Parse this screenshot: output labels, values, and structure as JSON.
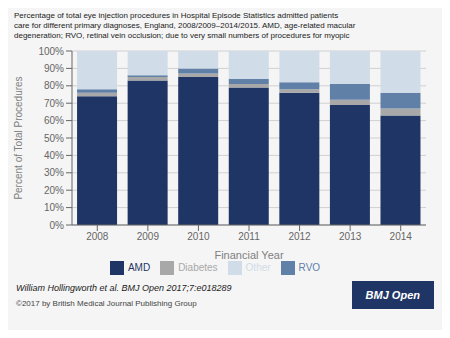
{
  "chart_data": {
    "type": "bar",
    "stacked": true,
    "title": "Percentage of total eye injection procedures in Hospital Episode Statistics admitted patients\ncare for different primary diagnoses, England, 2008/2009–2014/2015. AMD, age-related macular\ndegeneration; RVO, retinal vein occlusion; due to very small numbers of procedures for myopic",
    "xlabel": "Financial Year",
    "ylabel": "Percent of Total Procedures",
    "categories": [
      "2008",
      "2009",
      "2010",
      "2011",
      "2012",
      "2013",
      "2014"
    ],
    "series": [
      {
        "name": "AMD",
        "color": "#1f3566",
        "values": [
          74,
          83,
          85,
          79,
          76,
          69,
          63
        ]
      },
      {
        "name": "Diabetes",
        "color": "#a8a8a8",
        "values": [
          2,
          2,
          2,
          2,
          2,
          3,
          4
        ]
      },
      {
        "name": "RVO",
        "color": "#6080a8",
        "values": [
          2,
          1,
          3,
          3,
          4,
          9,
          9
        ]
      },
      {
        "name": "Other",
        "color": "#d0dce8",
        "values": [
          22,
          14,
          10,
          16,
          18,
          19,
          24
        ]
      }
    ],
    "ylim": [
      0,
      100
    ],
    "yticks": [
      {
        "value": 0,
        "label": "0%"
      },
      {
        "value": 10,
        "label": "10%"
      },
      {
        "value": 20,
        "label": "20%"
      },
      {
        "value": 30,
        "label": "30%"
      },
      {
        "value": 40,
        "label": "40%"
      },
      {
        "value": 50,
        "label": "50%"
      },
      {
        "value": 60,
        "label": "60%"
      },
      {
        "value": 70,
        "label": "70%"
      },
      {
        "value": 80,
        "label": "80%"
      },
      {
        "value": 90,
        "label": "90%"
      },
      {
        "value": 100,
        "label": "100%"
      }
    ],
    "grid": true,
    "legend": "bottom",
    "annotations": [
      "William Hollingworth et al. BMJ Open 2017;7:e018289",
      "©2017 by British Medical Journal Publishing Group",
      "BMJ Open"
    ]
  }
}
